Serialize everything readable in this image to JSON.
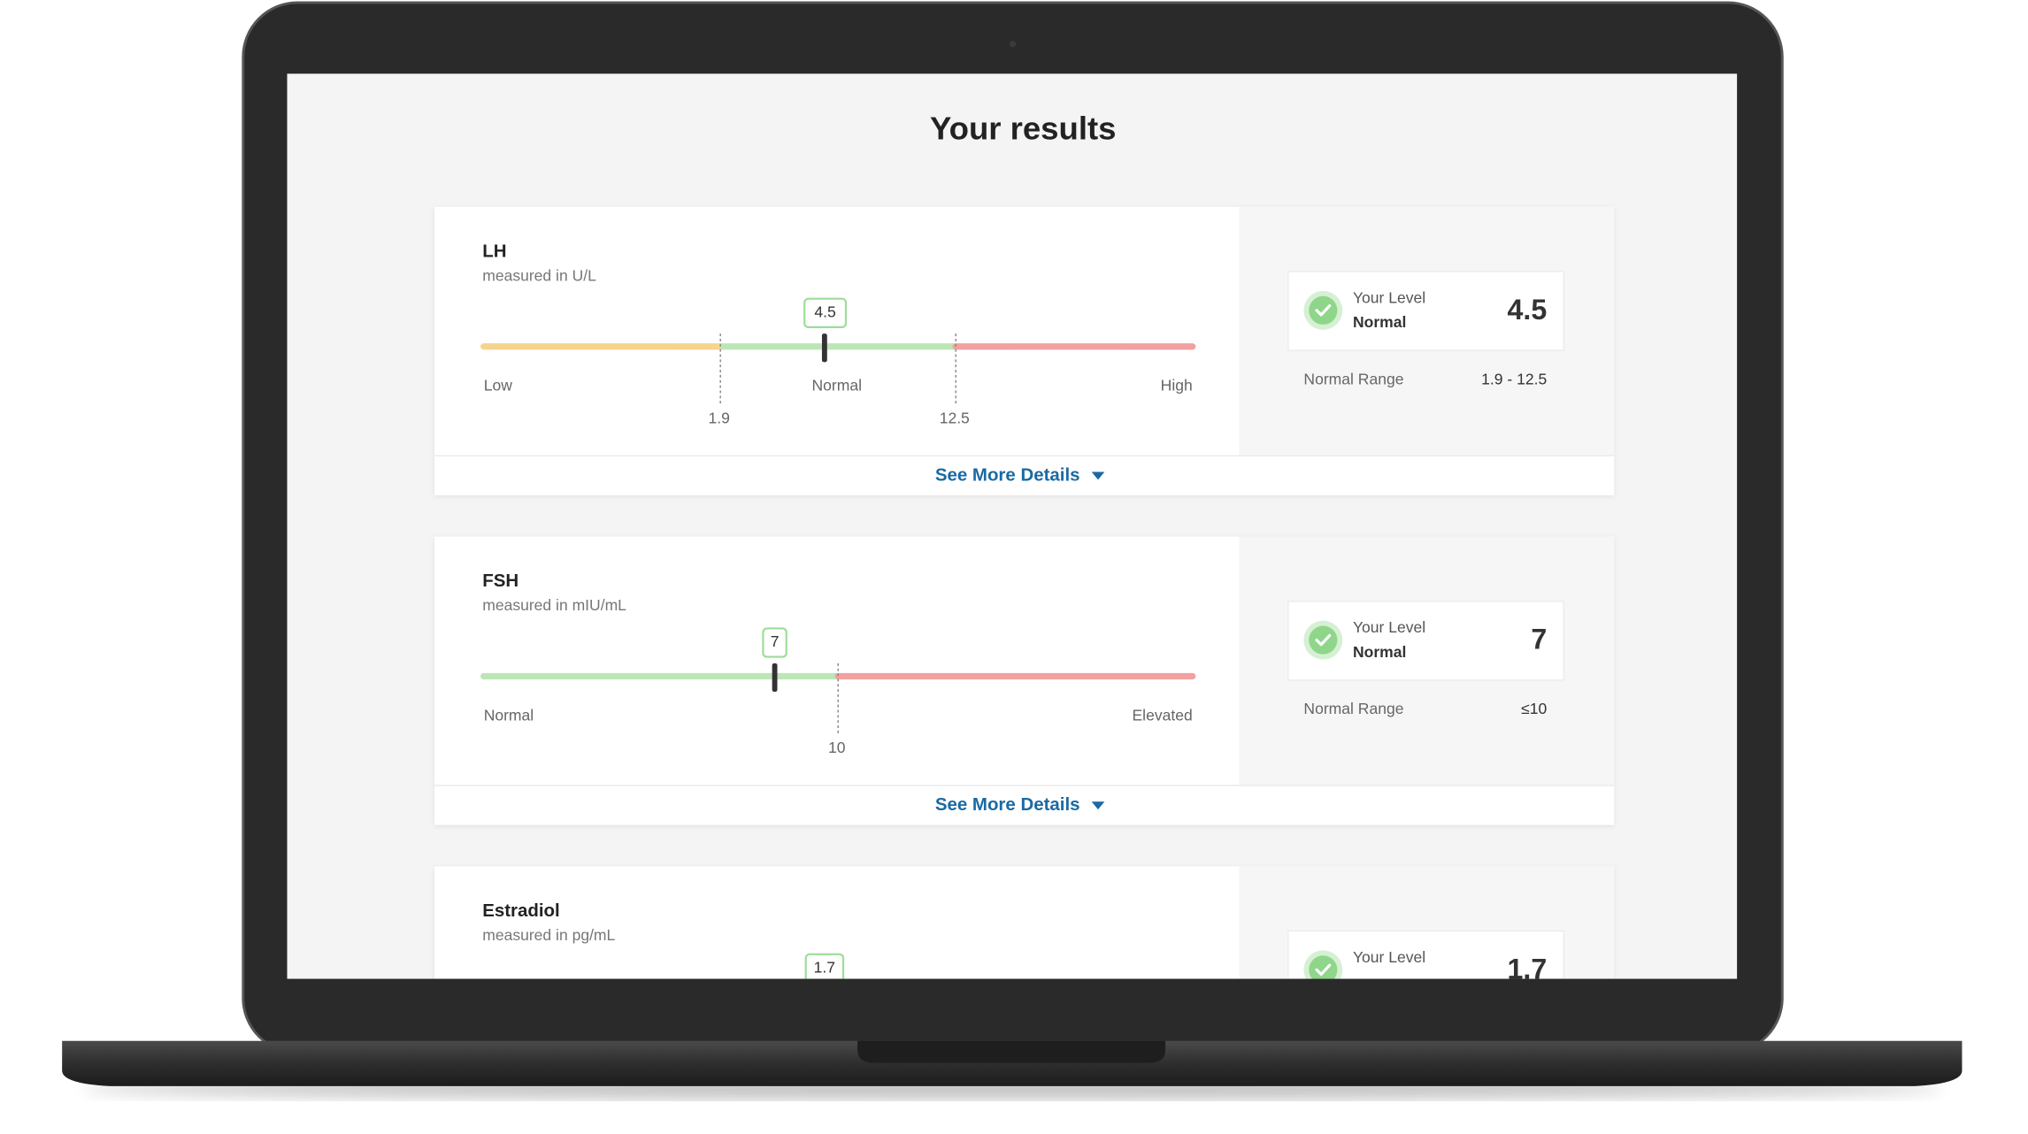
{
  "header": {
    "title": "Your results"
  },
  "results": [
    {
      "name": "LH",
      "unit": "measured in U/L",
      "value": "4.5",
      "bands": [
        "Low",
        "Normal",
        "High"
      ],
      "thresholds": [
        "1.9",
        "12.5"
      ],
      "level_label": "Your Level",
      "status": "Normal",
      "range_label": "Normal Range",
      "range": "1.9 - 12.5",
      "details": "See More Details"
    },
    {
      "name": "FSH",
      "unit": "measured in mIU/mL",
      "value": "7",
      "bands": [
        "Normal",
        "Elevated"
      ],
      "thresholds": [
        "10"
      ],
      "level_label": "Your Level",
      "status": "Normal",
      "range_label": "Normal Range",
      "range": "≤10",
      "details": "See More Details"
    },
    {
      "name": "Estradiol",
      "unit": "measured in pg/mL",
      "value": "1.7",
      "level_label": "Your Level"
    }
  ]
}
